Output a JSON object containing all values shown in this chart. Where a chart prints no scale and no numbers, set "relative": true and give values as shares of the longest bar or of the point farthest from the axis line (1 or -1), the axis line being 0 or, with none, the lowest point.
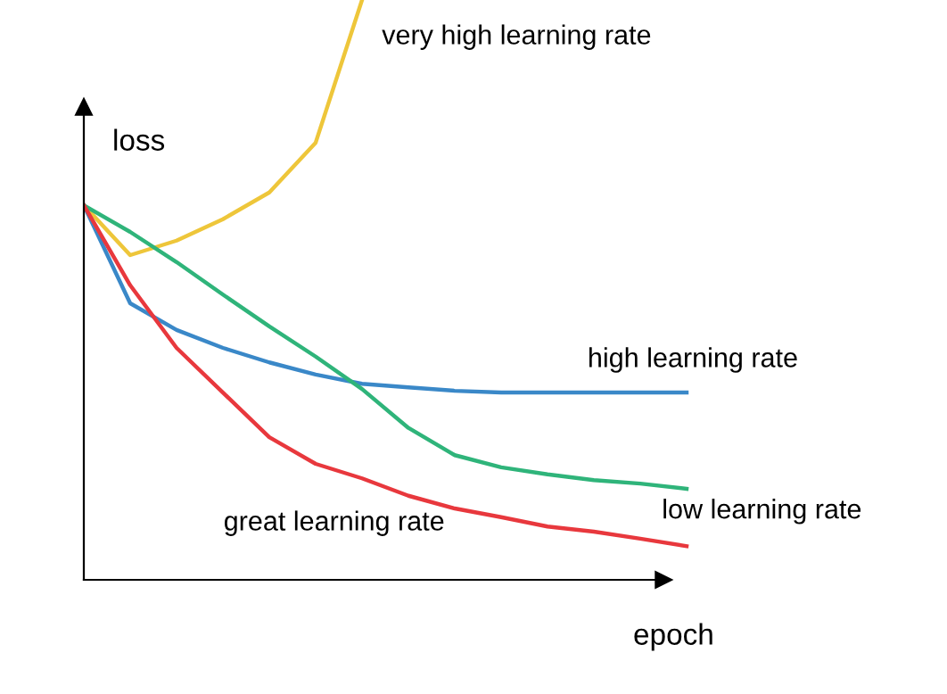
{
  "chart_data": {
    "type": "line",
    "relative": true,
    "xlabel": "epoch",
    "ylabel": "loss",
    "legend": false,
    "marker": "none",
    "line_style": "solid",
    "categories": [
      null,
      null,
      null,
      null,
      null,
      null,
      null,
      null,
      null,
      null,
      null,
      null,
      null,
      null
    ],
    "series": [
      {
        "name": "very high learning rate",
        "color": "#eec63a",
        "values": [
          0.646,
          0.56,
          0.585,
          0.622,
          0.668,
          0.754,
          1,
          null,
          null,
          null,
          null,
          null,
          null,
          null
        ]
      },
      {
        "name": "high learning rate",
        "color": "#3a88c8",
        "values": [
          0.646,
          0.477,
          0.431,
          0.4,
          0.375,
          0.354,
          0.338,
          0.332,
          0.326,
          0.323,
          0.323,
          0.323,
          0.323,
          0.323
        ]
      },
      {
        "name": "low learning rate",
        "color": "#2fb47a",
        "values": [
          0.646,
          0.6,
          0.548,
          0.492,
          0.437,
          0.385,
          0.329,
          0.262,
          0.215,
          0.194,
          0.182,
          0.172,
          0.166,
          0.157
        ]
      },
      {
        "name": "great learning rate",
        "color": "#e8383d",
        "values": [
          0.646,
          0.508,
          0.4,
          0.323,
          0.246,
          0.2,
          0.175,
          0.145,
          0.123,
          0.108,
          0.092,
          0.083,
          0.071,
          0.058
        ]
      }
    ]
  }
}
